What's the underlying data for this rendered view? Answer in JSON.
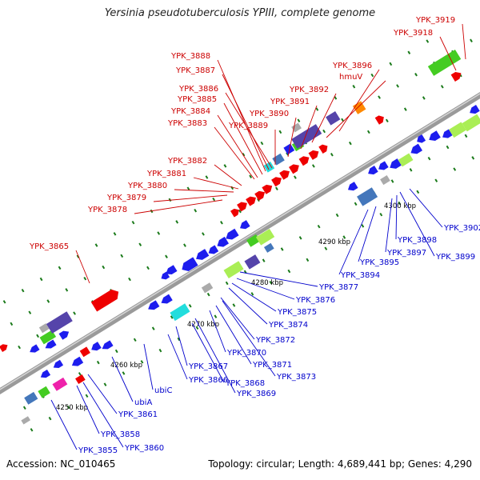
{
  "title": "Yersinia pseudotuberculosis YPIII, complete genome",
  "accession": "Accession: NC_010465",
  "summary": "Topology: circular; Length: 4,689,441 bp; Genes: 4,290",
  "colors": {
    "backbone": "#808080",
    "top_label": "#cc0000",
    "bottom_label": "#0000cc",
    "tick_dot": "#1a7a1a",
    "gene_red": "#ee0000",
    "gene_blue": "#1d1dee",
    "gene_green": "#44cc22",
    "gene_lime": "#aaee55",
    "gene_cyan": "#22dddd",
    "gene_purple": "#5544aa",
    "gene_steel": "#4477bb",
    "gene_orange": "#ff8800",
    "gene_magenta": "#ee22aa",
    "gene_gray": "#aaaaaa"
  },
  "ticks": [
    {
      "label": "4250 kbp"
    },
    {
      "label": "4260 kbp"
    },
    {
      "label": "4270 kbp"
    },
    {
      "label": "4280 kbp"
    },
    {
      "label": "4290 kbp"
    },
    {
      "label": "4300 kbp"
    }
  ],
  "top_labels": [
    {
      "text": "YPK_3919"
    },
    {
      "text": "YPK_3918"
    },
    {
      "text": "YPK_3896"
    },
    {
      "text": "hmuV"
    },
    {
      "text": "YPK_3892"
    },
    {
      "text": "YPK_3891"
    },
    {
      "text": "YPK_3890"
    },
    {
      "text": "YPK_3889"
    },
    {
      "text": "YPK_3888"
    },
    {
      "text": "YPK_3887"
    },
    {
      "text": "YPK_3886"
    },
    {
      "text": "YPK_3885"
    },
    {
      "text": "YPK_3884"
    },
    {
      "text": "YPK_3883"
    },
    {
      "text": "YPK_3882"
    },
    {
      "text": "YPK_3881"
    },
    {
      "text": "YPK_3880"
    },
    {
      "text": "YPK_3879"
    },
    {
      "text": "YPK_3878"
    },
    {
      "text": "YPK_3865"
    }
  ],
  "bottom_labels": [
    {
      "text": "YPK_3902"
    },
    {
      "text": "YPK_3898"
    },
    {
      "text": "YPK_3899"
    },
    {
      "text": "YPK_3897"
    },
    {
      "text": "YPK_3895"
    },
    {
      "text": "YPK_3894"
    },
    {
      "text": "YPK_3877"
    },
    {
      "text": "YPK_3876"
    },
    {
      "text": "YPK_3875"
    },
    {
      "text": "YPK_3874"
    },
    {
      "text": "YPK_3872"
    },
    {
      "text": "YPK_3870"
    },
    {
      "text": "YPK_3871"
    },
    {
      "text": "YPK_3873"
    },
    {
      "text": "YPK_3867"
    },
    {
      "text": "YPK_3868"
    },
    {
      "text": "YPK_3869"
    },
    {
      "text": "YPK_3866"
    },
    {
      "text": "ubiC"
    },
    {
      "text": "ubiA"
    },
    {
      "text": "YPK_3861"
    },
    {
      "text": "YPK_3858"
    },
    {
      "text": "YPK_3860"
    },
    {
      "text": "YPK_3855"
    }
  ]
}
